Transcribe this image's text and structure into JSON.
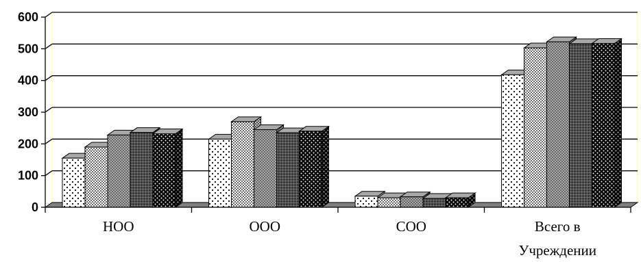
{
  "chart_data": {
    "type": "bar",
    "style": "3d-clustered-column",
    "categories": [
      "НОО",
      "ООО",
      "СОО",
      "Всего в Учреждении"
    ],
    "category_lines": [
      [
        "НОО"
      ],
      [
        "ООО"
      ],
      [
        "СОО"
      ],
      [
        "Всего в",
        "Учреждении"
      ]
    ],
    "series": [
      {
        "values": [
          155,
          215,
          35,
          418
        ],
        "pattern": "sparse-dots"
      },
      {
        "values": [
          190,
          270,
          30,
          503
        ],
        "pattern": "fine-dots"
      },
      {
        "values": [
          228,
          245,
          33,
          522
        ],
        "pattern": "gray-hatch"
      },
      {
        "values": [
          236,
          235,
          28,
          516
        ],
        "pattern": "dark-grid"
      },
      {
        "values": [
          232,
          240,
          30,
          517
        ],
        "pattern": "dense-dots"
      }
    ],
    "ylim": [
      0,
      600
    ],
    "yticks": [
      0,
      100,
      200,
      300,
      400,
      500,
      600
    ],
    "grid": true,
    "legend": "none",
    "floor_color": "#808080",
    "wall_edge_color": "#ffff99"
  }
}
